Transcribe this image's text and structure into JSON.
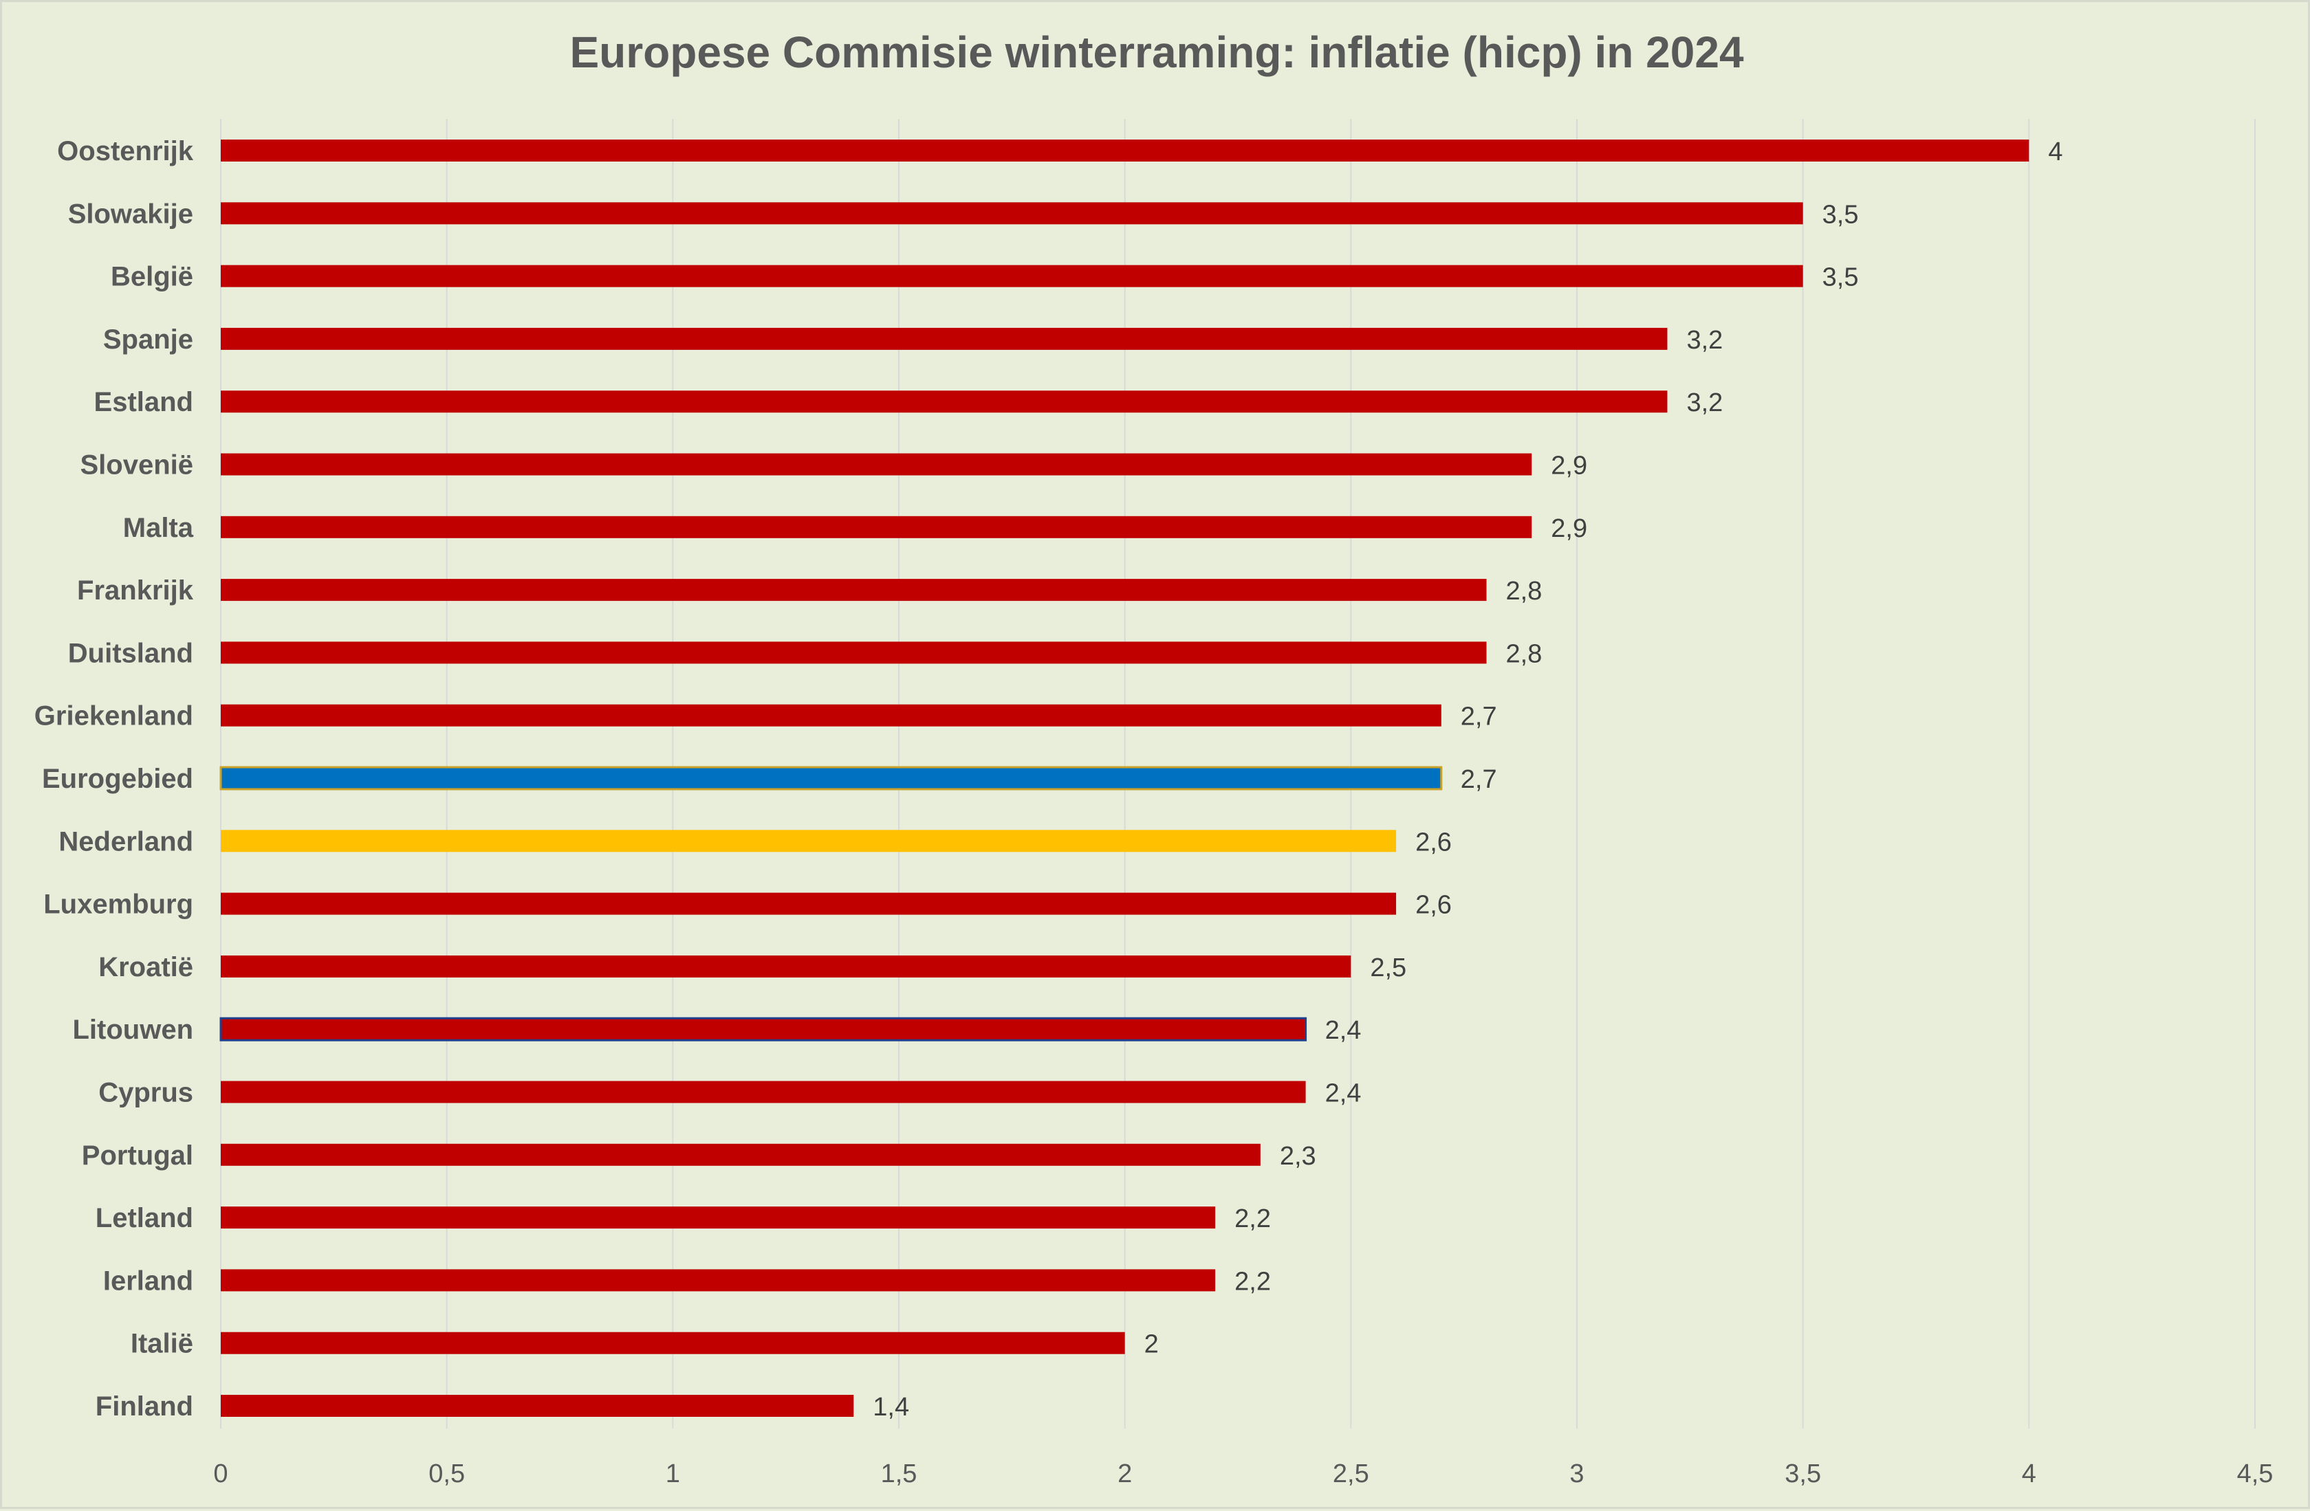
{
  "chart_data": {
    "type": "bar",
    "orientation": "horizontal",
    "title": "Europese Commisie winterraming: inflatie (hicp) in 2024",
    "xlabel": "",
    "ylabel": "",
    "xlim": [
      0,
      4.5
    ],
    "x_ticks": [
      0,
      0.5,
      1,
      1.5,
      2,
      2.5,
      3,
      3.5,
      4,
      4.5
    ],
    "x_tick_labels": [
      "0",
      "0,5",
      "1",
      "1,5",
      "2",
      "2,5",
      "3",
      "3,5",
      "4",
      "4,5"
    ],
    "grid": true,
    "legend": "none",
    "categories": [
      "Oostenrijk",
      "Slowakije",
      "België",
      "Spanje",
      "Estland",
      "Slovenië",
      "Malta",
      "Frankrijk",
      "Duitsland",
      "Griekenland",
      "Eurogebied",
      "Nederland",
      "Luxemburg",
      "Kroatië",
      "Litouwen",
      "Cyprus",
      "Portugal",
      "Letland",
      "Ierland",
      "Italië",
      "Finland"
    ],
    "values": [
      4,
      3.5,
      3.5,
      3.2,
      3.2,
      2.9,
      2.9,
      2.8,
      2.8,
      2.7,
      2.7,
      2.6,
      2.6,
      2.5,
      2.4,
      2.4,
      2.3,
      2.2,
      2.2,
      2,
      1.4
    ],
    "value_labels": [
      "4",
      "3,5",
      "3,5",
      "3,2",
      "3,2",
      "2,9",
      "2,9",
      "2,8",
      "2,8",
      "2,7",
      "2,7",
      "2,6",
      "2,6",
      "2,5",
      "2,4",
      "2,4",
      "2,3",
      "2,2",
      "2,2",
      "2",
      "1,4"
    ],
    "bar_colors": [
      "#c00000",
      "#c00000",
      "#c00000",
      "#c00000",
      "#c00000",
      "#c00000",
      "#c00000",
      "#c00000",
      "#c00000",
      "#c00000",
      "#0070c0",
      "#ffc000",
      "#c00000",
      "#c00000",
      "#c00000",
      "#c00000",
      "#c00000",
      "#c00000",
      "#c00000",
      "#c00000",
      "#c00000"
    ],
    "bar_outline_colors": [
      "none",
      "none",
      "none",
      "none",
      "none",
      "none",
      "none",
      "none",
      "none",
      "none",
      "#c9a227",
      "none",
      "none",
      "none",
      "#1f3f8f",
      "none",
      "none",
      "none",
      "none",
      "none",
      "none"
    ]
  },
  "colors": {
    "background": "#e9eedb",
    "default_bar": "#c00000",
    "highlight_eurozone": "#0070c0",
    "highlight_netherlands": "#ffc000",
    "title_text": "#595959",
    "gridline": "#d9d9d9"
  }
}
